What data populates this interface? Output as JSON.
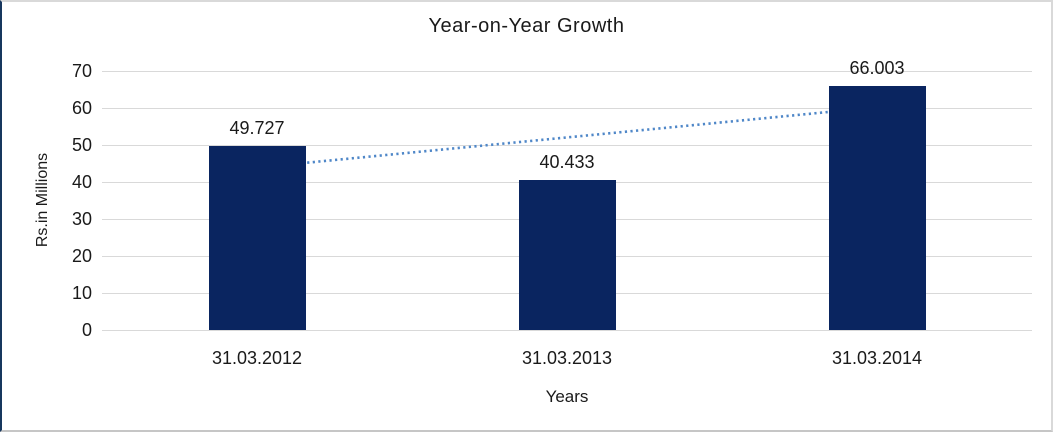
{
  "chart_data": {
    "type": "bar",
    "title": "Year-on-Year Growth",
    "categories": [
      "31.03.2012",
      "31.03.2013",
      "31.03.2014"
    ],
    "values": [
      49.727,
      40.433,
      66.003
    ],
    "data_labels": [
      "49.727",
      "40.433",
      "66.003"
    ],
    "xlabel": "Years",
    "ylabel": "Rs.in Millions",
    "ylim": [
      0,
      70
    ],
    "ytick_step": 10,
    "yticks": [
      0,
      10,
      20,
      30,
      40,
      50,
      60,
      70
    ],
    "grid": true,
    "legend": false,
    "trendline": {
      "type": "linear",
      "style": "dotted",
      "start_value": 43.9,
      "end_value": 60.2
    }
  },
  "colors": {
    "bar": "#0a2560",
    "trendline": "#4f87c8",
    "gridline": "#d9d9d9",
    "text": "#1a1a1a",
    "frame_left": "#17375e",
    "frame_gray": "#d9d9d9",
    "background": "#ffffff"
  }
}
